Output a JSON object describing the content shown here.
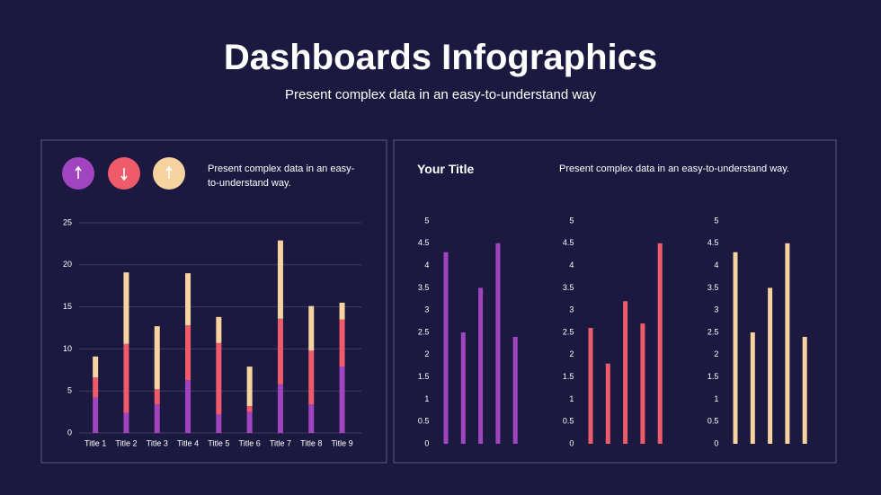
{
  "header": {
    "title": "Dashboards Infographics",
    "subtitle": "Present complex data in an easy-to-understand way"
  },
  "left_panel": {
    "description": "Present complex data in an easy-to-understand way."
  },
  "right_panel": {
    "title": "Your Title",
    "description": "Present complex data in an easy-to-understand way."
  },
  "chart_data": [
    {
      "type": "stacked_bar",
      "categories": [
        "Title 1",
        "Title 2",
        "Title 3",
        "Title 4",
        "Title 5",
        "Title 6",
        "Title 7",
        "Title 8",
        "Title 9"
      ],
      "series": [
        {
          "color": "#a044c0",
          "values": [
            4.2,
            2.4,
            3.4,
            6.3,
            2.2,
            2.5,
            5.8,
            3.4,
            7.9
          ]
        },
        {
          "color": "#ef5b6b",
          "values": [
            2.4,
            8.2,
            1.8,
            6.5,
            8.5,
            0.7,
            7.8,
            6.4,
            5.6
          ]
        },
        {
          "color": "#f7d3a0",
          "values": [
            2.5,
            8.5,
            7.5,
            6.2,
            3.1,
            4.7,
            9.3,
            5.3,
            2.0
          ]
        }
      ],
      "ylim": [
        0,
        25
      ],
      "yticks": [
        0,
        5,
        10,
        15,
        20,
        25
      ],
      "grid": true
    },
    {
      "type": "bar",
      "values": [
        4.3,
        2.5,
        3.5,
        4.5,
        2.4
      ],
      "color": "#a044c0",
      "ylim": [
        0,
        5
      ],
      "yticks": [
        0,
        0.5,
        1,
        1.5,
        2,
        2.5,
        3,
        3.5,
        4,
        4.5,
        5
      ],
      "grid": false
    },
    {
      "type": "bar",
      "values": [
        2.6,
        1.8,
        3.2,
        2.7,
        4.5
      ],
      "color": "#ef5b6b",
      "ylim": [
        0,
        5
      ],
      "yticks": [
        0,
        0.5,
        1,
        1.5,
        2,
        2.5,
        3,
        3.5,
        4,
        4.5,
        5
      ],
      "grid": false
    },
    {
      "type": "bar",
      "values": [
        4.3,
        2.5,
        3.5,
        4.5,
        2.4
      ],
      "color": "#f7d3a0",
      "ylim": [
        0,
        5
      ],
      "yticks": [
        0,
        0.5,
        1,
        1.5,
        2,
        2.5,
        3,
        3.5,
        4,
        4.5,
        5
      ],
      "grid": false
    }
  ]
}
